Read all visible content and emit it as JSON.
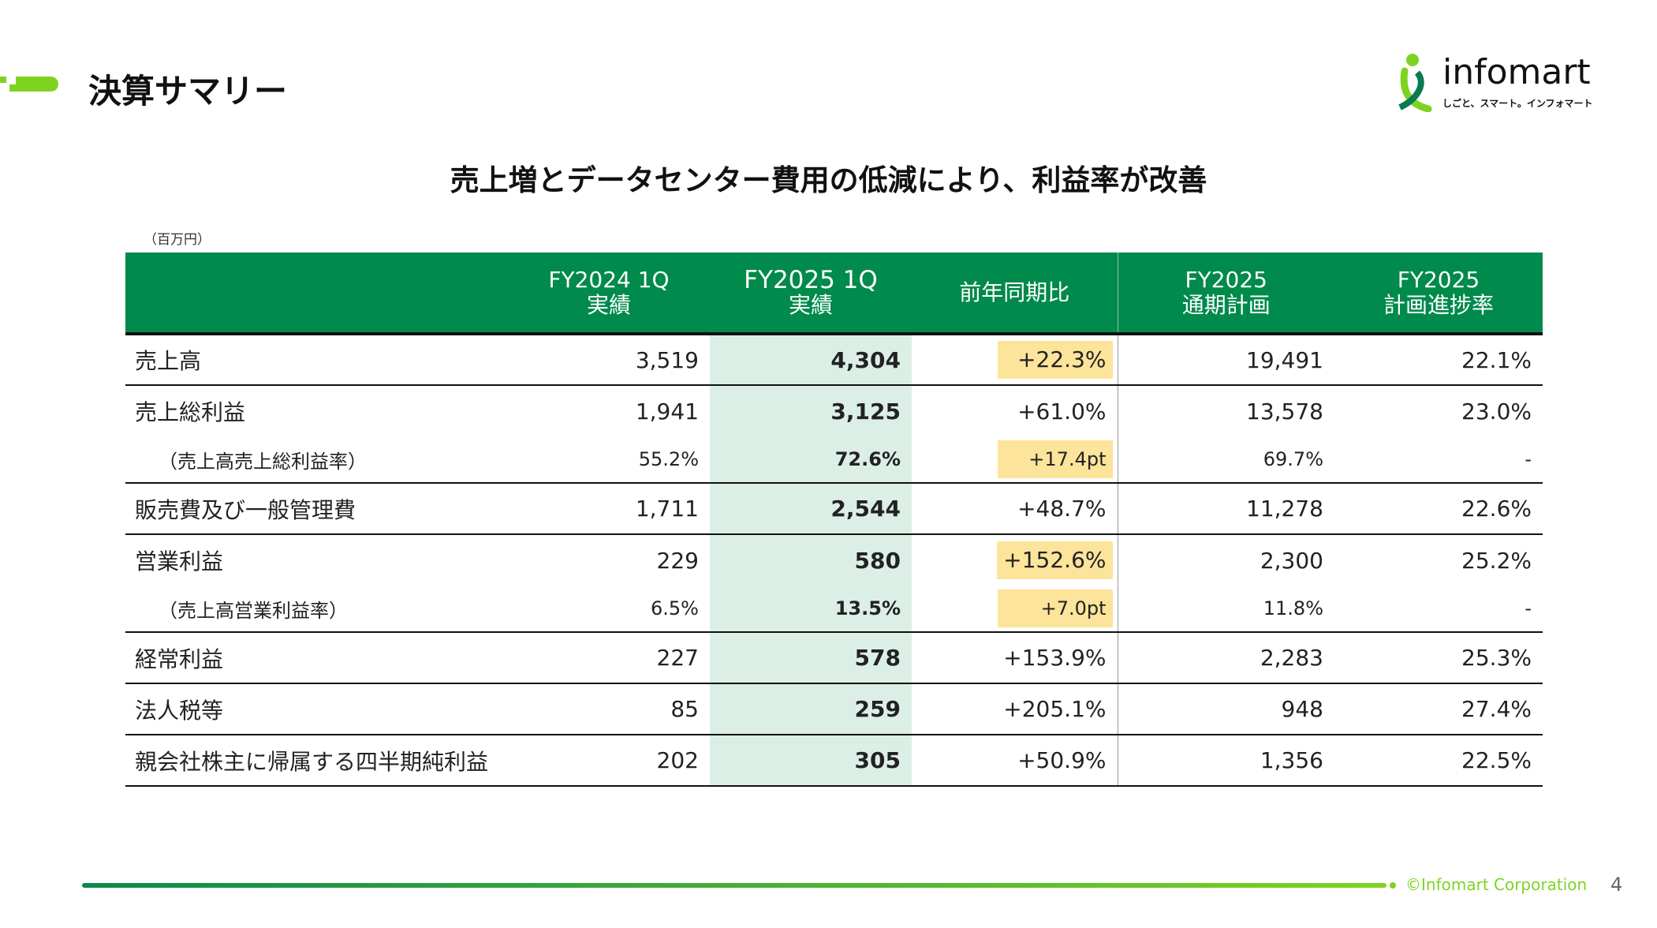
{
  "header": {
    "title": "決算サマリー",
    "accent_color": "#7ed321"
  },
  "logo": {
    "name": "infomart",
    "tagline": "しごと、スマート。インフォマート"
  },
  "subtitle": "売上増とデータセンター費用の低減により、利益率が改善",
  "unit": "（百万円）",
  "table": {
    "columns": [
      "",
      "FY2024 1Q\n実績",
      "FY2025 1Q\n実績",
      "前年同期比",
      "FY2025\n通期計画",
      "FY2025\n計画進捗率"
    ],
    "column_lines": [
      [
        "",
        ""
      ],
      [
        "FY2024 1Q",
        "実績"
      ],
      [
        "FY2025 1Q",
        "実績"
      ],
      [
        "前年同期比",
        ""
      ],
      [
        "FY2025",
        "通期計画"
      ],
      [
        "FY2025",
        "計画進捗率"
      ]
    ],
    "rows": [
      {
        "label": "売上高",
        "values": [
          "3,519",
          "4,304",
          "+22.3%",
          "19,491",
          "22.1%"
        ],
        "highlight": true,
        "sub": false
      },
      {
        "label": "売上総利益",
        "values": [
          "1,941",
          "3,125",
          "+61.0%",
          "13,578",
          "23.0%"
        ],
        "highlight": false,
        "sub": false
      },
      {
        "label": "（売上高売上総利益率）",
        "values": [
          "55.2%",
          "72.6%",
          "+17.4pt",
          "69.7%",
          "-"
        ],
        "highlight": true,
        "sub": true
      },
      {
        "label": "販売費及び一般管理費",
        "values": [
          "1,711",
          "2,544",
          "+48.7%",
          "11,278",
          "22.6%"
        ],
        "highlight": false,
        "sub": false
      },
      {
        "label": "営業利益",
        "values": [
          "229",
          "580",
          "+152.6%",
          "2,300",
          "25.2%"
        ],
        "highlight": true,
        "sub": false
      },
      {
        "label": "（売上高営業利益率）",
        "values": [
          "6.5%",
          "13.5%",
          "+7.0pt",
          "11.8%",
          "-"
        ],
        "highlight": true,
        "sub": true
      },
      {
        "label": "経常利益",
        "values": [
          "227",
          "578",
          "+153.9%",
          "2,283",
          "25.3%"
        ],
        "highlight": false,
        "sub": false
      },
      {
        "label": "法人税等",
        "values": [
          "85",
          "259",
          "+205.1%",
          "948",
          "27.4%"
        ],
        "highlight": false,
        "sub": false
      },
      {
        "label": "親会社株主に帰属する四半期純利益",
        "values": [
          "202",
          "305",
          "+50.9%",
          "1,356",
          "22.5%"
        ],
        "highlight": false,
        "sub": false
      }
    ],
    "colors": {
      "header": "#008a4b",
      "current_col": "#dcefe6",
      "highlight": "#fde49b"
    }
  },
  "footer": {
    "copyright": "©Infomart Corporation",
    "page": "4"
  }
}
